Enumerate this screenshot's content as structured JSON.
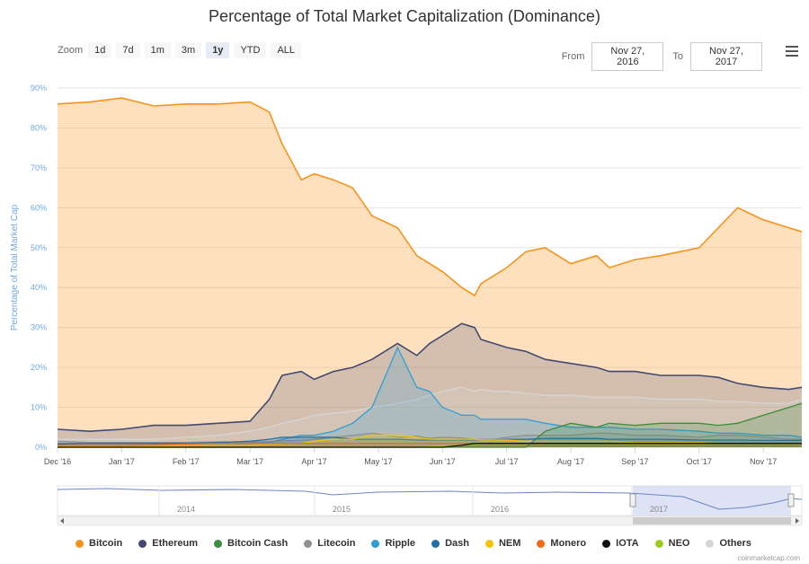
{
  "title": "Percentage of Total Market Capitalization (Dominance)",
  "zoom": {
    "label": "Zoom",
    "buttons": [
      "1d",
      "7d",
      "1m",
      "3m",
      "1y",
      "YTD",
      "ALL"
    ],
    "active": "1y"
  },
  "range": {
    "from_label": "From",
    "from_value": "Nov 27, 2016",
    "to_label": "To",
    "to_value": "Nov 27, 2017"
  },
  "credit": "coinmarketcap.com",
  "navigator": {
    "years": [
      "2014",
      "2015",
      "2016",
      "2017"
    ]
  },
  "chart_data": {
    "type": "area",
    "ylabel": "Percentage of Total Market Cap",
    "ylim": [
      0,
      90
    ],
    "yticks": [
      "0%",
      "10%",
      "20%",
      "30%",
      "40%",
      "50%",
      "60%",
      "70%",
      "80%",
      "90%"
    ],
    "xlabels": [
      "Dec '16",
      "Jan '17",
      "Feb '17",
      "Mar '17",
      "Apr '17",
      "May '17",
      "Jun '17",
      "Jul '17",
      "Aug '17",
      "Sep '17",
      "Oct '17",
      "Nov '17"
    ],
    "x": [
      0,
      0.5,
      1,
      1.5,
      2,
      2.5,
      3,
      3.3,
      3.5,
      3.8,
      4,
      4.3,
      4.6,
      4.9,
      5.3,
      5.6,
      5.8,
      6,
      6.3,
      6.5,
      6.6,
      6.8,
      7,
      7.3,
      7.6,
      8,
      8.4,
      8.6,
      9,
      9.4,
      10,
      10.3,
      10.6,
      11,
      11.4,
      11.6
    ],
    "grid": true,
    "legend_position": "bottom",
    "colors": {
      "bitcoin": "#f7931a",
      "ethereum": "#434973",
      "bitcoin_cash": "#3a8f3a",
      "litecoin": "#909090",
      "ripple": "#2c9fd9",
      "dash": "#1f6fa8",
      "nem": "#f5c400",
      "monero": "#f06a1a",
      "iota": "#111111",
      "neo": "#9bcc1c",
      "others": "#d6d6d6"
    },
    "series": [
      {
        "name": "Bitcoin",
        "values": [
          86,
          86.5,
          87.5,
          85.5,
          86,
          86,
          86.5,
          84,
          76,
          67,
          68.5,
          67,
          65,
          58,
          55,
          48,
          46,
          44,
          40,
          38,
          41,
          43,
          45,
          49,
          50,
          46,
          48,
          45,
          47,
          48,
          50,
          55,
          60,
          57,
          55,
          54
        ]
      },
      {
        "name": "Ethereum",
        "values": [
          4.5,
          4,
          4.5,
          5.5,
          5.5,
          6,
          6.5,
          12,
          18,
          19,
          17,
          19,
          20,
          22,
          26,
          23,
          26,
          28,
          31,
          30,
          27,
          26,
          25,
          24,
          22,
          21,
          20,
          19,
          19,
          18,
          18,
          17.5,
          16,
          15,
          14.5,
          15
        ]
      },
      {
        "name": "Bitcoin Cash",
        "values": [
          0,
          0,
          0,
          0,
          0,
          0,
          0,
          0,
          0,
          0,
          0,
          0,
          0,
          0,
          0,
          0,
          0,
          0,
          0,
          0,
          0,
          0,
          0,
          0,
          4,
          6,
          5,
          6,
          5.5,
          6,
          6,
          5.5,
          6,
          8,
          10,
          11
        ]
      },
      {
        "name": "Litecoin",
        "values": [
          1.5,
          1.2,
          1.2,
          1.2,
          1.2,
          1.3,
          1.3,
          1.4,
          1.6,
          1.7,
          2,
          2.5,
          3,
          3.5,
          2.5,
          2.8,
          2.2,
          2.5,
          2.3,
          2,
          2,
          2,
          2.5,
          3,
          3,
          3,
          3.5,
          3.5,
          3,
          3,
          2.5,
          3,
          3,
          2.5,
          2,
          2
        ]
      },
      {
        "name": "Ripple",
        "values": [
          1,
          1,
          1,
          1,
          1,
          1,
          1,
          1.2,
          2,
          3,
          3,
          4,
          6,
          10,
          25,
          15,
          14,
          10,
          8,
          8,
          7,
          7,
          7,
          7,
          6,
          5,
          5,
          5,
          4.5,
          4.5,
          4,
          3.5,
          3.5,
          3,
          3,
          2.5
        ]
      },
      {
        "name": "Dash",
        "values": [
          0.8,
          1,
          1,
          1,
          1,
          1.2,
          1.5,
          2,
          2.5,
          2.5,
          2.5,
          2.5,
          2,
          2,
          2,
          1.8,
          1.8,
          1.8,
          1.8,
          1.8,
          1.8,
          1.8,
          2,
          2,
          2.2,
          2.2,
          2.2,
          2,
          2,
          2,
          1.8,
          1.8,
          1.8,
          1.7,
          1.7,
          1.7
        ]
      },
      {
        "name": "NEM",
        "values": [
          0.2,
          0.2,
          0.2,
          0.3,
          0.4,
          0.5,
          0.5,
          0.7,
          0.8,
          1,
          1.5,
          2,
          2,
          3,
          3,
          2.5,
          2,
          2,
          2,
          2,
          1.8,
          1.8,
          1.8,
          1.5,
          1.5,
          1.5,
          1.5,
          1.5,
          1.2,
          1.2,
          1.2,
          1,
          1,
          1,
          1,
          0.9
        ]
      },
      {
        "name": "Monero",
        "values": [
          0.5,
          0.5,
          0.5,
          0.6,
          0.8,
          1,
          1,
          1,
          1,
          1,
          1,
          1,
          1,
          1,
          1,
          1,
          1,
          1,
          1,
          1,
          1,
          1,
          1,
          1,
          1,
          1,
          1,
          1,
          1,
          1,
          1,
          1,
          1,
          1,
          1,
          1
        ]
      },
      {
        "name": "IOTA",
        "values": [
          0,
          0,
          0,
          0,
          0,
          0,
          0,
          0,
          0,
          0,
          0,
          0,
          0,
          0,
          0,
          0,
          0,
          0,
          0.5,
          1,
          1,
          1,
          1,
          1,
          1,
          1,
          1,
          1,
          1,
          1,
          1,
          1,
          1,
          1,
          1,
          1
        ]
      },
      {
        "name": "NEO",
        "values": [
          0,
          0,
          0,
          0,
          0,
          0,
          0,
          0,
          0,
          0,
          0,
          0,
          0,
          0,
          0,
          0,
          0.2,
          0.3,
          0.5,
          0.7,
          1,
          1,
          1,
          1,
          1,
          1,
          1,
          1,
          1,
          1,
          1,
          1,
          1,
          1,
          1,
          1
        ]
      },
      {
        "name": "Others",
        "values": [
          2,
          2,
          2,
          2,
          2.5,
          3,
          4,
          5,
          6,
          7,
          8,
          8.5,
          9,
          10,
          11,
          12,
          13,
          14,
          15,
          14,
          14.5,
          14,
          14,
          13.5,
          13,
          13,
          12.5,
          12.5,
          12.5,
          12,
          12,
          11.5,
          11.5,
          11,
          11,
          12
        ]
      }
    ]
  }
}
